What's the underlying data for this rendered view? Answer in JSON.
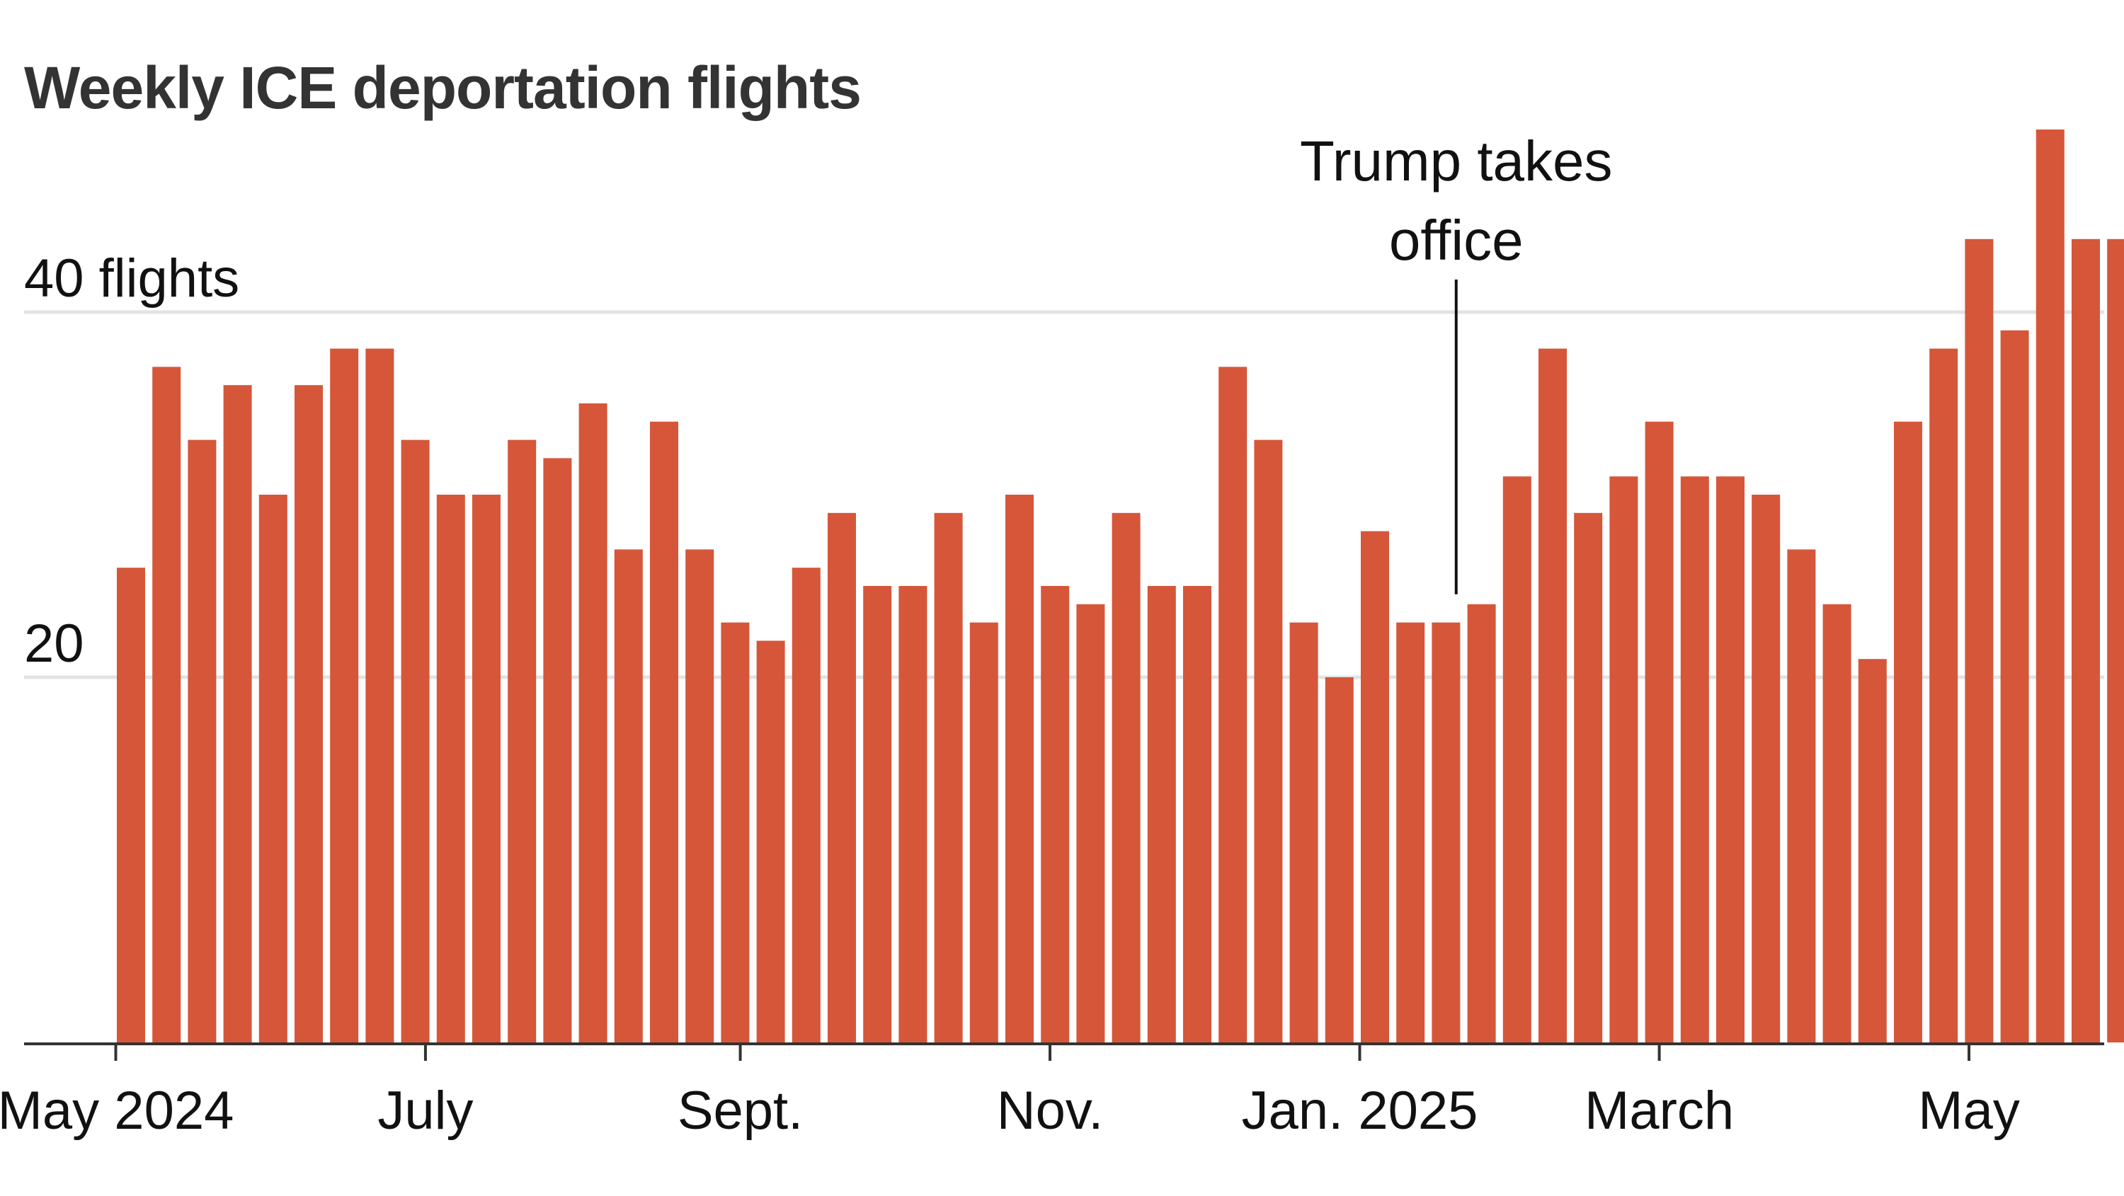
{
  "chart_data": {
    "type": "bar",
    "title": "Weekly ICE deportation flights",
    "xlabel": "",
    "ylabel": "",
    "ylim": [
      0,
      50
    ],
    "y_ticks": [
      {
        "value": 20,
        "label": "20"
      },
      {
        "value": 40,
        "label": "40 flights"
      }
    ],
    "grid": true,
    "x": [
      "2024-05-04",
      "2024-05-11",
      "2024-05-18",
      "2024-05-25",
      "2024-06-01",
      "2024-06-08",
      "2024-06-15",
      "2024-06-22",
      "2024-06-29",
      "2024-07-06",
      "2024-07-13",
      "2024-07-20",
      "2024-07-27",
      "2024-08-03",
      "2024-08-10",
      "2024-08-17",
      "2024-08-24",
      "2024-08-31",
      "2024-09-07",
      "2024-09-14",
      "2024-09-21",
      "2024-09-28",
      "2024-10-05",
      "2024-10-12",
      "2024-10-19",
      "2024-10-26",
      "2024-11-02",
      "2024-11-09",
      "2024-11-16",
      "2024-11-23",
      "2024-11-30",
      "2024-12-07",
      "2024-12-14",
      "2024-12-21",
      "2024-12-28",
      "2025-01-04",
      "2025-01-11",
      "2025-01-18",
      "2025-01-25",
      "2025-02-01",
      "2025-02-08",
      "2025-02-15",
      "2025-02-22",
      "2025-03-01",
      "2025-03-08",
      "2025-03-15",
      "2025-03-22",
      "2025-03-29",
      "2025-04-05",
      "2025-04-12",
      "2025-04-19",
      "2025-04-26",
      "2025-05-03",
      "2025-05-10",
      "2025-05-17",
      "2025-05-24",
      "2025-05-31"
    ],
    "values": [
      26,
      37,
      33,
      36,
      30,
      36,
      38,
      38,
      33,
      30,
      30,
      33,
      32,
      35,
      27,
      34,
      27,
      23,
      22,
      26,
      29,
      25,
      25,
      29,
      23,
      30,
      25,
      24,
      29,
      25,
      25,
      37,
      33,
      23,
      20,
      28,
      23,
      23,
      24,
      31,
      38,
      29,
      31,
      34,
      31,
      31,
      30,
      27,
      24,
      21,
      34,
      38,
      44,
      39,
      50,
      44,
      44
    ],
    "x_ticks": [
      {
        "date": "2024-05-01",
        "label": "May 2024"
      },
      {
        "date": "2024-07-01",
        "label": "July"
      },
      {
        "date": "2024-09-01",
        "label": "Sept."
      },
      {
        "date": "2024-11-01",
        "label": "Nov."
      },
      {
        "date": "2025-01-01",
        "label": "Jan. 2025"
      },
      {
        "date": "2025-03-01",
        "label": "March"
      },
      {
        "date": "2025-05-01",
        "label": "May"
      }
    ],
    "annotations": [
      {
        "date": "2025-01-20",
        "lines": [
          "Trump takes",
          "office"
        ]
      }
    ],
    "colors": {
      "bar": "#d6563a",
      "grid": "#e3e3e3",
      "axis": "#333333",
      "text": "#111111"
    }
  }
}
